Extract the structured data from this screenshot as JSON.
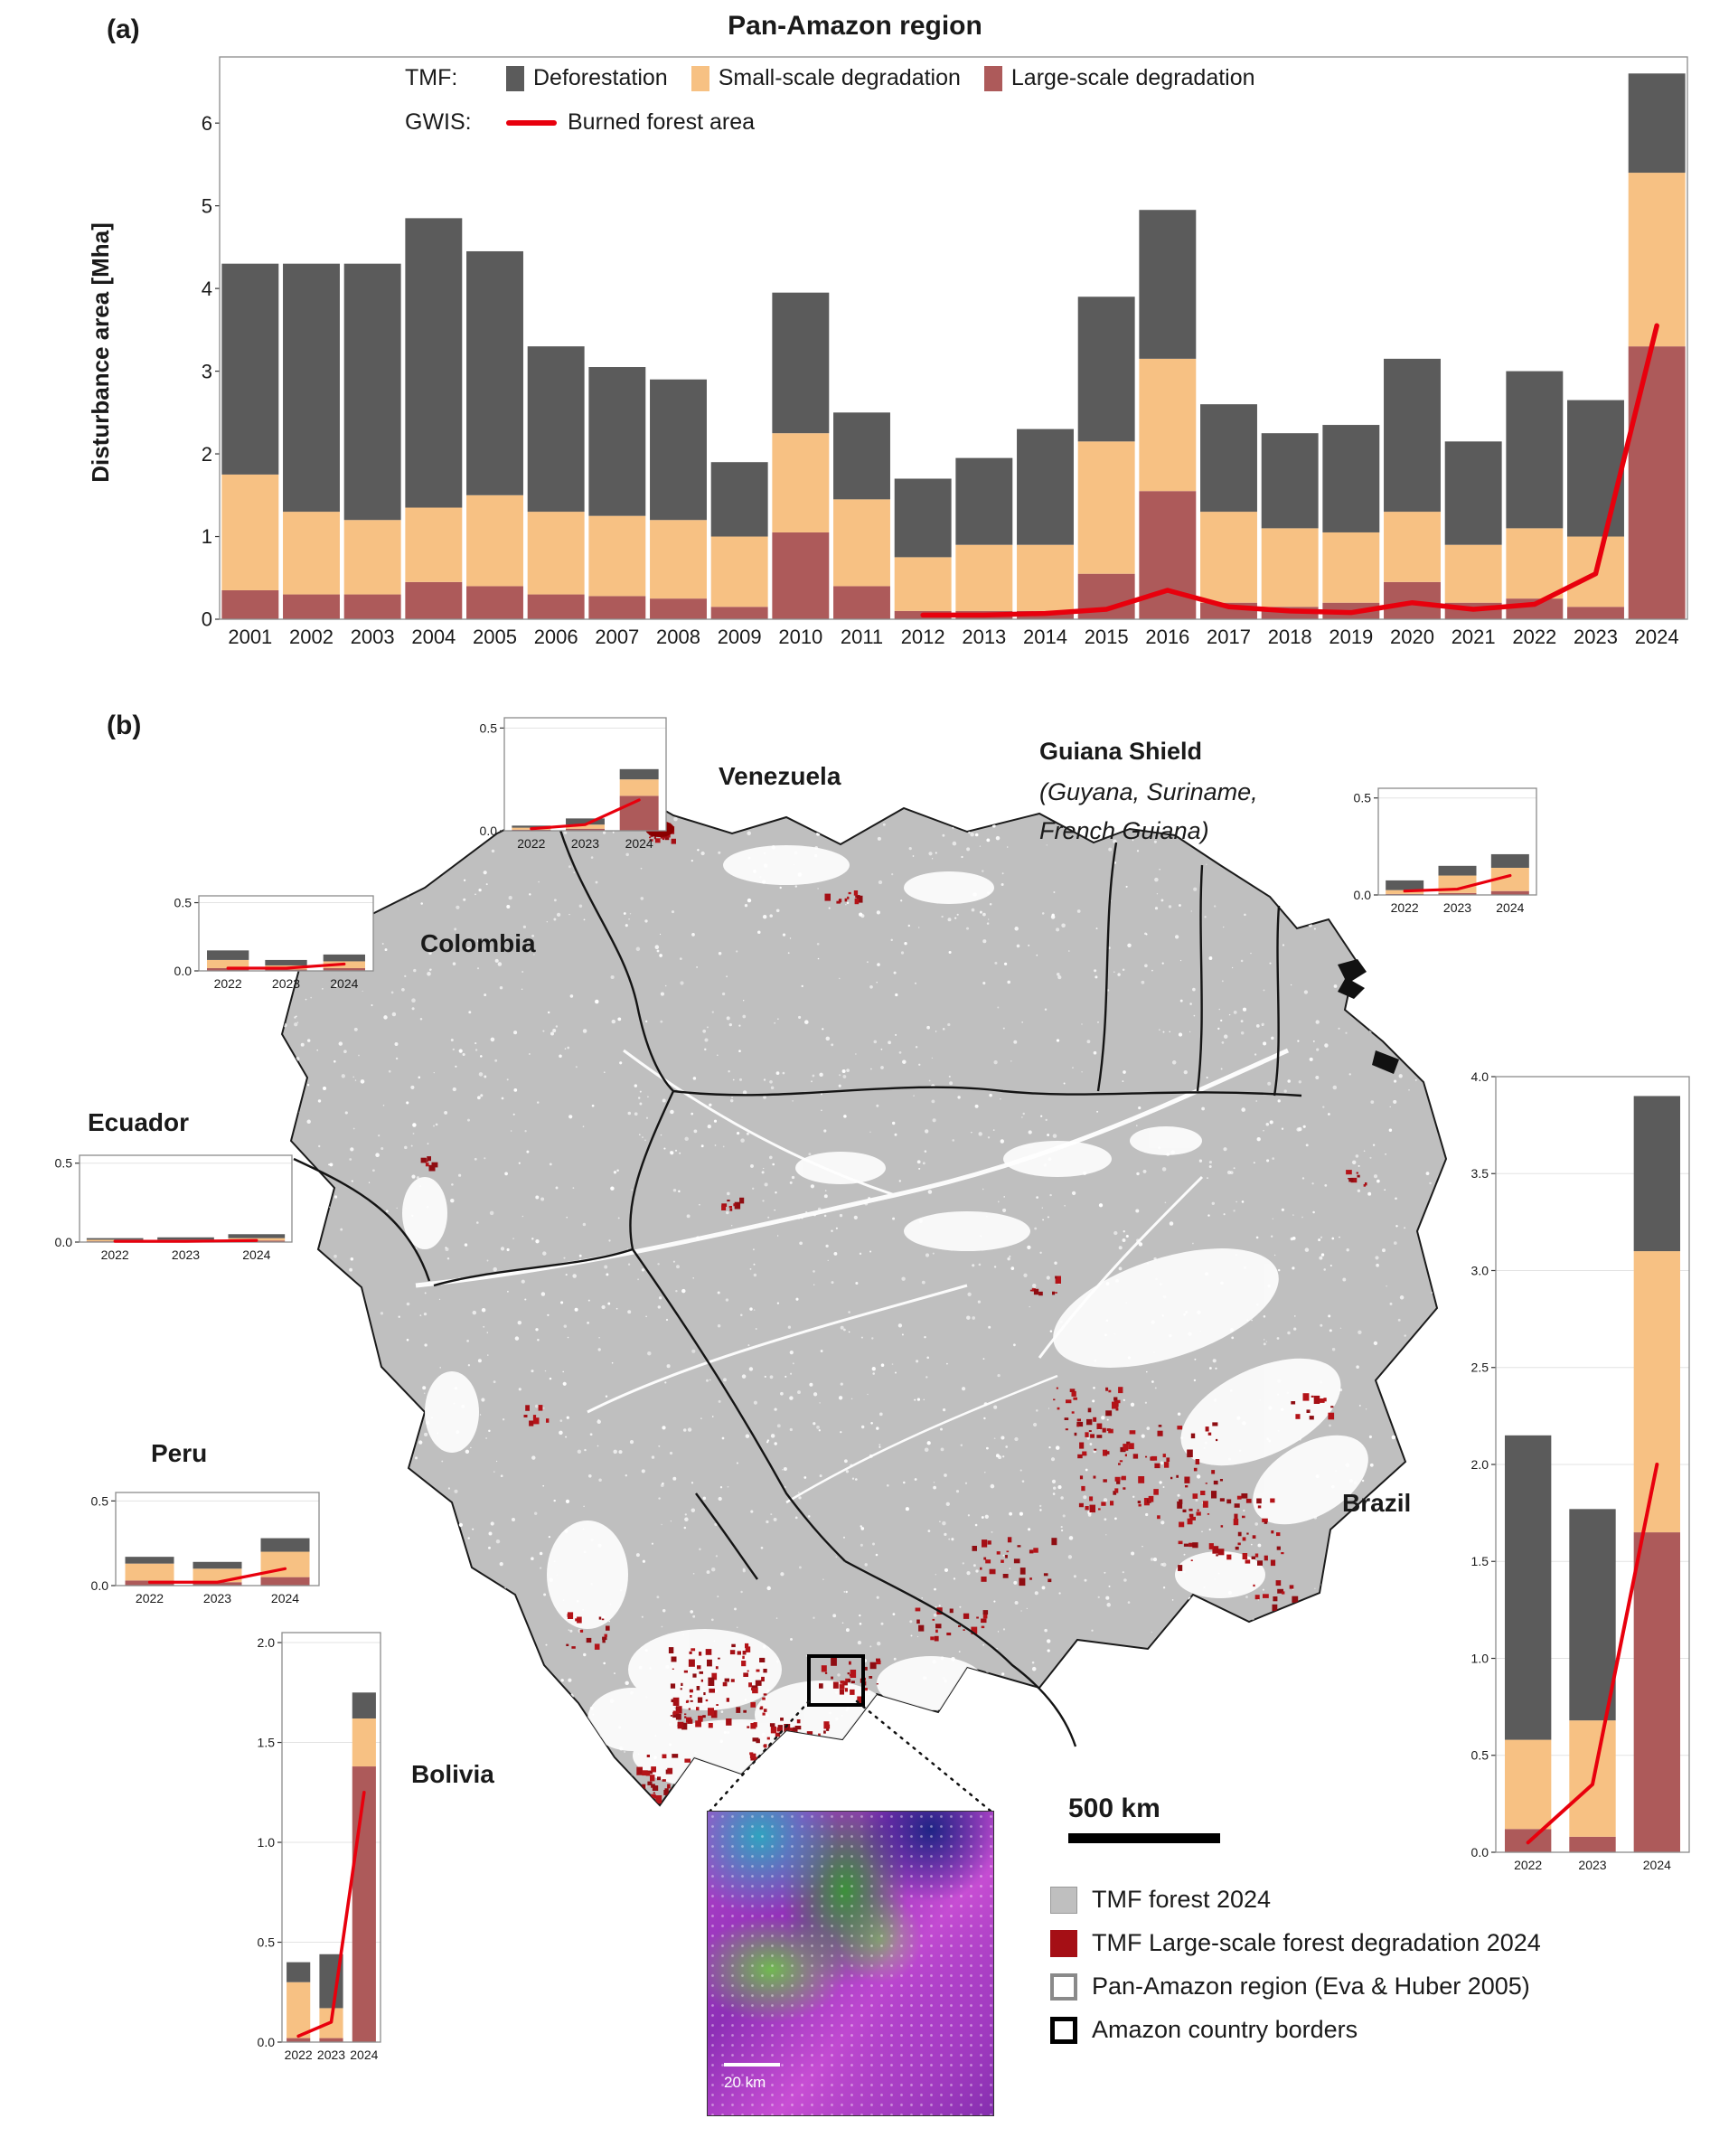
{
  "colors": {
    "deforestation": "#5b5b5b",
    "small_scale": "#f7c183",
    "large_scale": "#ad5a5a",
    "burned_line": "#e8000d",
    "map_forest": "#bfbfbf",
    "map_degradation": "#a50f15"
  },
  "panel_a": {
    "tag": "(a)",
    "title": "Pan-Amazon region",
    "ylabel": "Disturbance area [Mha]",
    "legend": {
      "tmf": "TMF:",
      "gwis": "GWIS:",
      "deforestation": "Deforestation",
      "small": "Small-scale degradation",
      "large": "Large-scale degradation",
      "burned": "Burned forest area"
    },
    "chart_data": {
      "type": "bar",
      "stacked": true,
      "title": "Pan-Amazon region",
      "ylabel": "Disturbance area [Mha]",
      "categories": [
        "2001",
        "2002",
        "2003",
        "2004",
        "2005",
        "2006",
        "2007",
        "2008",
        "2009",
        "2010",
        "2011",
        "2012",
        "2013",
        "2014",
        "2015",
        "2016",
        "2017",
        "2018",
        "2019",
        "2020",
        "2021",
        "2022",
        "2023",
        "2024"
      ],
      "ylim": [
        0,
        6.8
      ],
      "yticks": [
        {
          "v": 0,
          "t": "0"
        },
        {
          "v": 1,
          "t": "1"
        },
        {
          "v": 2,
          "t": "2"
        },
        {
          "v": 3,
          "t": "3"
        },
        {
          "v": 4,
          "t": "4"
        },
        {
          "v": 5,
          "t": "5"
        },
        {
          "v": 6,
          "t": "6"
        }
      ],
      "series": [
        {
          "name": "Large-scale degradation",
          "color_key": "large_scale",
          "values": [
            0.35,
            0.3,
            0.3,
            0.45,
            0.4,
            0.3,
            0.28,
            0.25,
            0.15,
            1.05,
            0.4,
            0.1,
            0.1,
            0.1,
            0.55,
            1.55,
            0.2,
            0.15,
            0.2,
            0.45,
            0.2,
            0.25,
            0.15,
            3.3
          ]
        },
        {
          "name": "Small-scale degradation",
          "color_key": "small_scale",
          "values": [
            1.4,
            1.0,
            0.9,
            0.9,
            1.1,
            1.0,
            0.97,
            0.95,
            0.85,
            1.2,
            1.05,
            0.65,
            0.8,
            0.8,
            1.6,
            1.6,
            1.1,
            0.95,
            0.85,
            0.85,
            0.7,
            0.85,
            0.85,
            2.1
          ]
        },
        {
          "name": "Deforestation",
          "color_key": "deforestation",
          "values": [
            2.55,
            3.0,
            3.1,
            3.5,
            2.95,
            2.0,
            1.8,
            1.7,
            0.9,
            1.7,
            1.05,
            0.95,
            1.05,
            1.4,
            1.75,
            1.8,
            1.3,
            1.15,
            1.3,
            1.85,
            1.25,
            1.9,
            1.65,
            1.2
          ]
        }
      ],
      "line": {
        "name": "Burned forest area",
        "start_index": 11,
        "values": [
          0.05,
          0.05,
          0.07,
          0.12,
          0.35,
          0.15,
          0.1,
          0.08,
          0.2,
          0.12,
          0.18,
          0.55,
          3.55
        ]
      }
    }
  },
  "panel_b": {
    "tag": "(b)",
    "minis": [
      {
        "label": "Venezuela",
        "chart": {
          "type": "bar",
          "stacked": true,
          "categories": [
            "2022",
            "2023",
            "2024"
          ],
          "ylim": [
            0,
            0.55
          ],
          "yticks": [
            {
              "v": 0,
              "t": "0.0"
            },
            {
              "v": 0.5,
              "t": "0.5"
            }
          ],
          "series": [
            {
              "name": "Large-scale degradation",
              "color_key": "large_scale",
              "values": [
                0.005,
                0.01,
                0.17
              ]
            },
            {
              "name": "Small-scale degradation",
              "color_key": "small_scale",
              "values": [
                0.01,
                0.02,
                0.08
              ]
            },
            {
              "name": "Deforestation",
              "color_key": "deforestation",
              "values": [
                0.01,
                0.03,
                0.05
              ]
            }
          ],
          "line": {
            "name": "Burned forest area",
            "start_index": 0,
            "values": [
              0.01,
              0.03,
              0.15
            ]
          }
        }
      },
      {
        "label": "Guiana Shield",
        "sub1": "(Guyana, Suriname,",
        "sub2": "French Guiana)",
        "chart": {
          "type": "bar",
          "stacked": true,
          "categories": [
            "2022",
            "2023",
            "2024"
          ],
          "ylim": [
            0,
            0.55
          ],
          "yticks": [
            {
              "v": 0,
              "t": "0.0"
            },
            {
              "v": 0.5,
              "t": "0.5"
            }
          ],
          "series": [
            {
              "name": "Large-scale degradation",
              "color_key": "large_scale",
              "values": [
                0.005,
                0.01,
                0.02
              ]
            },
            {
              "name": "Small-scale degradation",
              "color_key": "small_scale",
              "values": [
                0.02,
                0.09,
                0.12
              ]
            },
            {
              "name": "Deforestation",
              "color_key": "deforestation",
              "values": [
                0.05,
                0.05,
                0.07
              ]
            }
          ],
          "line": {
            "name": "Burned forest area",
            "start_index": 0,
            "values": [
              0.02,
              0.03,
              0.1
            ]
          }
        }
      },
      {
        "label": "Colombia",
        "chart": {
          "type": "bar",
          "stacked": true,
          "categories": [
            "2022",
            "2023",
            "2024"
          ],
          "ylim": [
            0,
            0.55
          ],
          "yticks": [
            {
              "v": 0,
              "t": "0.0"
            },
            {
              "v": 0.5,
              "t": "0.5"
            }
          ],
          "series": [
            {
              "name": "Large-scale degradation",
              "color_key": "large_scale",
              "values": [
                0.02,
                0.01,
                0.02
              ]
            },
            {
              "name": "Small-scale degradation",
              "color_key": "small_scale",
              "values": [
                0.06,
                0.03,
                0.05
              ]
            },
            {
              "name": "Deforestation",
              "color_key": "deforestation",
              "values": [
                0.07,
                0.04,
                0.05
              ]
            }
          ],
          "line": {
            "name": "Burned forest area",
            "start_index": 0,
            "values": [
              0.02,
              0.02,
              0.05
            ]
          }
        }
      },
      {
        "label": "Ecuador",
        "chart": {
          "type": "bar",
          "stacked": true,
          "categories": [
            "2022",
            "2023",
            "2024"
          ],
          "ylim": [
            0,
            0.55
          ],
          "yticks": [
            {
              "v": 0,
              "t": "0.0"
            },
            {
              "v": 0.5,
              "t": "0.5"
            }
          ],
          "series": [
            {
              "name": "Large-scale degradation",
              "color_key": "large_scale",
              "values": [
                0.005,
                0.005,
                0.01
              ]
            },
            {
              "name": "Small-scale degradation",
              "color_key": "small_scale",
              "values": [
                0.01,
                0.01,
                0.015
              ]
            },
            {
              "name": "Deforestation",
              "color_key": "deforestation",
              "values": [
                0.01,
                0.015,
                0.025
              ]
            }
          ],
          "line": {
            "name": "Burned forest area",
            "start_index": 0,
            "values": [
              0.005,
              0.005,
              0.01
            ]
          }
        }
      },
      {
        "label": "Peru",
        "chart": {
          "type": "bar",
          "stacked": true,
          "categories": [
            "2022",
            "2023",
            "2024"
          ],
          "ylim": [
            0,
            0.55
          ],
          "yticks": [
            {
              "v": 0,
              "t": "0.0"
            },
            {
              "v": 0.5,
              "t": "0.5"
            }
          ],
          "series": [
            {
              "name": "Large-scale degradation",
              "color_key": "large_scale",
              "values": [
                0.03,
                0.02,
                0.05
              ]
            },
            {
              "name": "Small-scale degradation",
              "color_key": "small_scale",
              "values": [
                0.1,
                0.08,
                0.15
              ]
            },
            {
              "name": "Deforestation",
              "color_key": "deforestation",
              "values": [
                0.04,
                0.04,
                0.08
              ]
            }
          ],
          "line": {
            "name": "Burned forest area",
            "start_index": 0,
            "values": [
              0.02,
              0.02,
              0.1
            ]
          }
        }
      },
      {
        "label": "Bolivia",
        "chart": {
          "type": "bar",
          "stacked": true,
          "categories": [
            "2022",
            "2023",
            "2024"
          ],
          "ylim": [
            0,
            2.05
          ],
          "yticks": [
            {
              "v": 0,
              "t": "0.0"
            },
            {
              "v": 0.5,
              "t": "0.5"
            },
            {
              "v": 1,
              "t": "1.0"
            },
            {
              "v": 1.5,
              "t": "1.5"
            },
            {
              "v": 2,
              "t": "2.0"
            }
          ],
          "series": [
            {
              "name": "Large-scale degradation",
              "color_key": "large_scale",
              "values": [
                0.02,
                0.02,
                1.38
              ]
            },
            {
              "name": "Small-scale degradation",
              "color_key": "small_scale",
              "values": [
                0.28,
                0.15,
                0.24
              ]
            },
            {
              "name": "Deforestation",
              "color_key": "deforestation",
              "values": [
                0.1,
                0.27,
                0.13
              ]
            }
          ],
          "line": {
            "name": "Burned forest area",
            "start_index": 0,
            "values": [
              0.03,
              0.1,
              1.25
            ]
          }
        }
      },
      {
        "label": "Brazil",
        "chart": {
          "type": "bar",
          "stacked": true,
          "categories": [
            "2022",
            "2023",
            "2024"
          ],
          "ylim": [
            0,
            4.0
          ],
          "yticks": [
            {
              "v": 0,
              "t": "0.0"
            },
            {
              "v": 0.5,
              "t": "0.5"
            },
            {
              "v": 1,
              "t": "1.0"
            },
            {
              "v": 1.5,
              "t": "1.5"
            },
            {
              "v": 2,
              "t": "2.0"
            },
            {
              "v": 2.5,
              "t": "2.5"
            },
            {
              "v": 3,
              "t": "3.0"
            },
            {
              "v": 3.5,
              "t": "3.5"
            },
            {
              "v": 4,
              "t": "4.0"
            }
          ],
          "series": [
            {
              "name": "Large-scale degradation",
              "color_key": "large_scale",
              "values": [
                0.12,
                0.08,
                1.65
              ]
            },
            {
              "name": "Small-scale degradation",
              "color_key": "small_scale",
              "values": [
                0.46,
                0.6,
                1.45
              ]
            },
            {
              "name": "Deforestation",
              "color_key": "deforestation",
              "values": [
                1.57,
                1.09,
                0.8
              ]
            }
          ],
          "line": {
            "name": "Burned forest area",
            "start_index": 0,
            "values": [
              0.05,
              0.35,
              2.0
            ]
          }
        }
      }
    ],
    "map_legend": {
      "items": [
        {
          "label": "TMF forest 2024",
          "swatch": "forest"
        },
        {
          "label": "TMF Large-scale forest degradation 2024",
          "swatch": "degradation"
        },
        {
          "label": "Pan-Amazon region (Eva & Huber 2005)",
          "swatch": "region"
        },
        {
          "label": "Amazon country borders",
          "swatch": "borders"
        }
      ]
    },
    "scalebar_label": "500 km",
    "inset_scale_label": "20 km"
  }
}
